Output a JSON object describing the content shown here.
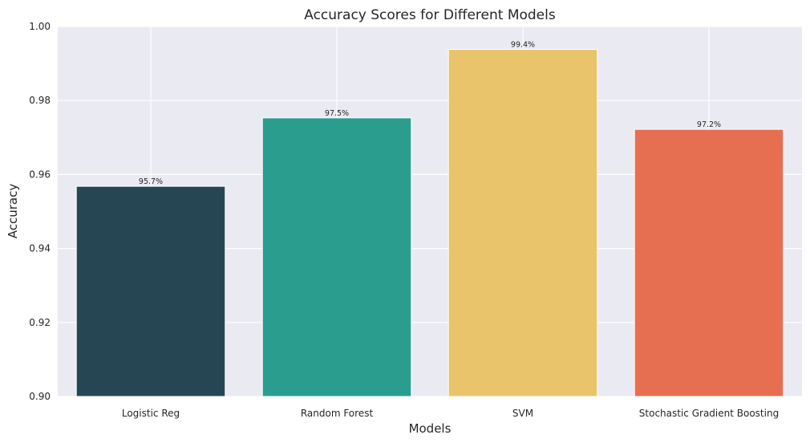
{
  "chart_data": {
    "type": "bar",
    "title": "Accuracy Scores for Different Models",
    "xlabel": "Models",
    "ylabel": "Accuracy",
    "categories": [
      "Logistic Reg",
      "Random Forest",
      "SVM",
      "Stochastic Gradient Boosting"
    ],
    "values": [
      0.9568,
      0.9753,
      0.9938,
      0.9722
    ],
    "data_labels": [
      "95.7%",
      "97.5%",
      "99.4%",
      "97.2%"
    ],
    "bar_colors": [
      "#264653",
      "#2a9d8f",
      "#e9c46a",
      "#e76f51"
    ],
    "ylim": [
      0.9,
      1.0
    ],
    "yticks": [
      0.9,
      0.92,
      0.94,
      0.96,
      0.98,
      1.0
    ],
    "ytick_labels": [
      "0.90",
      "0.92",
      "0.94",
      "0.96",
      "0.98",
      "1.00"
    ],
    "grid": true,
    "background_color": "#eaeaf2",
    "grid_color": "#ffffff"
  }
}
